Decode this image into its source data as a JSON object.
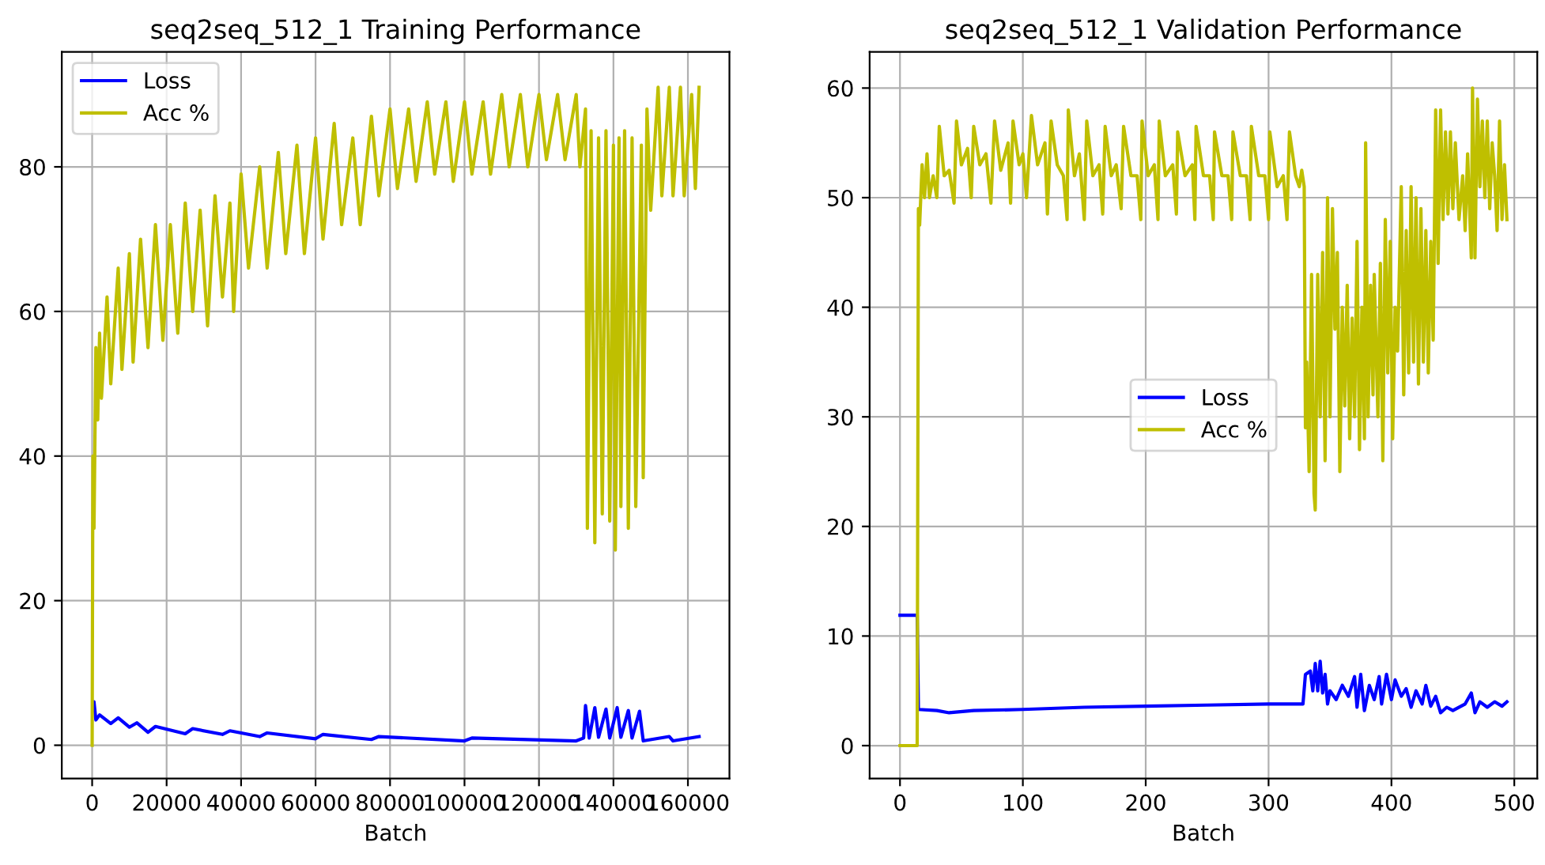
{
  "chart_data": [
    {
      "type": "line",
      "title": "seq2seq_512_1 Training Performance",
      "xlabel": "Batch",
      "xlim": [
        -8150,
        171150
      ],
      "ylim": [
        -4.6,
        95.9
      ],
      "xticks": [
        0,
        20000,
        40000,
        60000,
        80000,
        100000,
        120000,
        140000,
        160000
      ],
      "yticks": [
        0,
        20,
        40,
        60,
        80
      ],
      "grid": true,
      "legend": "top left",
      "series": [
        {
          "name": "Loss",
          "color": "#0000ff",
          "x": [
            300,
            500,
            1000,
            2000,
            5000,
            7000,
            10000,
            12000,
            15000,
            17000,
            25000,
            27000,
            35000,
            37000,
            45000,
            47000,
            60000,
            62000,
            75000,
            77000,
            100000,
            102000,
            130000,
            132000,
            132500,
            133500,
            135000,
            136000,
            138000,
            139000,
            141000,
            142000,
            144000,
            145000,
            147000,
            148000,
            155000,
            156000,
            163000
          ],
          "values": [
            5,
            6,
            3.5,
            4.2,
            3,
            3.8,
            2.5,
            3.1,
            1.8,
            2.6,
            1.6,
            2.3,
            1.5,
            2.0,
            1.2,
            1.7,
            0.9,
            1.5,
            0.8,
            1.2,
            0.6,
            1.0,
            0.6,
            1.0,
            5.5,
            1,
            5.2,
            1.1,
            5.0,
            1,
            5.2,
            1.1,
            4.8,
            1,
            4.7,
            0.6,
            1.2,
            0.6,
            1.2
          ]
        },
        {
          "name": "Acc %",
          "color": "#bfbf00",
          "x": [
            0,
            200,
            500,
            1000,
            1500,
            2000,
            2500,
            4000,
            5000,
            7000,
            8000,
            10000,
            11000,
            13000,
            15000,
            17000,
            19000,
            21000,
            23000,
            25000,
            27000,
            29000,
            31000,
            33000,
            35000,
            37000,
            38000,
            40000,
            42000,
            45000,
            47000,
            50000,
            52000,
            55000,
            57000,
            60000,
            62000,
            65000,
            67000,
            70000,
            72000,
            75000,
            77000,
            80000,
            82000,
            85000,
            87000,
            90000,
            92000,
            95000,
            97000,
            100000,
            102000,
            105000,
            107000,
            110000,
            112000,
            115000,
            117000,
            120000,
            122000,
            125000,
            127000,
            130000,
            131000,
            132500,
            133000,
            134000,
            135000,
            136000,
            137000,
            138000,
            139000,
            140000,
            140500,
            141500,
            142000,
            143000,
            144000,
            145000,
            146000,
            147500,
            148000,
            149000,
            150000,
            152000,
            153000,
            155000,
            156000,
            158000,
            159000,
            161000,
            162000,
            163000
          ],
          "values": [
            0,
            40,
            30,
            55,
            45,
            57,
            48,
            62,
            50,
            66,
            52,
            68,
            53,
            70,
            55,
            72,
            56,
            72,
            57,
            75,
            60,
            74,
            58,
            76,
            62,
            75,
            60,
            79,
            66,
            80,
            66,
            82,
            68,
            83,
            68,
            84,
            70,
            86,
            72,
            84,
            72,
            87,
            76,
            88,
            77,
            88,
            78,
            89,
            79,
            89,
            78,
            89,
            79,
            89,
            79,
            90,
            80,
            90,
            80,
            90,
            81,
            90,
            81,
            90,
            80,
            88,
            30,
            85,
            28,
            84,
            32,
            85,
            31,
            83,
            27,
            84,
            33,
            85,
            30,
            84,
            33,
            83,
            37,
            88,
            74,
            91,
            76,
            91,
            76,
            91,
            76,
            90,
            77,
            91
          ]
        }
      ]
    },
    {
      "type": "line",
      "title": "seq2seq_512_1 Validation Performance",
      "xlabel": "Batch",
      "xlim": [
        -24.7,
        518.7
      ],
      "ylim": [
        -3,
        63.3
      ],
      "xticks": [
        0,
        100,
        200,
        300,
        400,
        500
      ],
      "yticks": [
        0,
        10,
        20,
        30,
        40,
        50,
        60
      ],
      "grid": true,
      "legend": "center",
      "series": [
        {
          "name": "Loss",
          "color": "#0000ff",
          "x": [
            0,
            14,
            15,
            30,
            40,
            60,
            100,
            150,
            200,
            250,
            300,
            328,
            330,
            334,
            336,
            338,
            340,
            342,
            344,
            346,
            348,
            350,
            355,
            360,
            365,
            370,
            372,
            375,
            378,
            382,
            386,
            390,
            392,
            396,
            400,
            403,
            408,
            412,
            416,
            420,
            425,
            428,
            432,
            436,
            440,
            445,
            450,
            460,
            465,
            468,
            472,
            478,
            484,
            490,
            494
          ],
          "values": [
            11.9,
            11.9,
            3.3,
            3.2,
            3,
            3.2,
            3.3,
            3.5,
            3.6,
            3.7,
            3.8,
            3.8,
            6.5,
            6.8,
            5,
            7.5,
            5,
            7.7,
            4.8,
            6.5,
            3.8,
            5,
            4.2,
            5.5,
            4.5,
            6.3,
            3.5,
            6.5,
            3.2,
            5.5,
            4.2,
            6.3,
            3.8,
            6.5,
            4.2,
            6,
            4.5,
            5.2,
            3.5,
            5,
            3.8,
            5.5,
            3.6,
            4.5,
            3,
            3.5,
            3.2,
            3.8,
            4.8,
            3,
            4,
            3.5,
            4,
            3.6,
            4
          ]
        },
        {
          "name": "Acc %",
          "color": "#bfbf00",
          "x": [
            0,
            14,
            15,
            16,
            18,
            20,
            22,
            24,
            27,
            30,
            32,
            36,
            40,
            44,
            46,
            50,
            55,
            58,
            60,
            65,
            70,
            74,
            77,
            82,
            88,
            90,
            92,
            97,
            100,
            103,
            107,
            112,
            118,
            120,
            123,
            128,
            133,
            136,
            137,
            142,
            146,
            150,
            152,
            157,
            162,
            165,
            167,
            172,
            176,
            180,
            182,
            188,
            193,
            196,
            197,
            202,
            207,
            210,
            211,
            216,
            222,
            225,
            226,
            232,
            238,
            240,
            241,
            247,
            252,
            255,
            256,
            262,
            267,
            270,
            271,
            277,
            282,
            285,
            286,
            292,
            297,
            300,
            301,
            307,
            312,
            315,
            317,
            322,
            325,
            327,
            329,
            330,
            331,
            333,
            335,
            337,
            338,
            340,
            342,
            344,
            346,
            348,
            350,
            352,
            354,
            356,
            358,
            360,
            362,
            364,
            366,
            368,
            370,
            372,
            374,
            376,
            378,
            379,
            381,
            383,
            385,
            386,
            389,
            391,
            393,
            395,
            397,
            399,
            401,
            403,
            405,
            408,
            410,
            412,
            414,
            416,
            418,
            420,
            422,
            424,
            426,
            428,
            430,
            432,
            434,
            436,
            438,
            440,
            442,
            444,
            446,
            448,
            450,
            452,
            455,
            458,
            460,
            462,
            465,
            466,
            468,
            470,
            472,
            474,
            476,
            478,
            480,
            482,
            484,
            486,
            488,
            490,
            492,
            494
          ],
          "values": [
            0,
            0,
            49,
            47.5,
            53,
            50,
            54,
            50,
            52,
            50,
            56.5,
            52,
            52.5,
            49.5,
            57,
            53,
            54.5,
            50,
            56.5,
            53,
            54,
            49.5,
            57,
            52.5,
            55,
            49.5,
            57,
            53,
            54,
            50,
            57.5,
            53,
            55,
            48.5,
            57,
            53,
            52,
            48,
            58,
            52,
            54,
            48,
            57,
            52,
            53,
            48.5,
            56.5,
            52,
            53,
            49,
            56.5,
            52,
            52,
            48,
            57,
            52,
            53,
            48,
            57,
            52,
            53,
            48.5,
            56,
            52,
            53,
            48,
            56.5,
            52,
            52,
            48,
            56,
            52,
            52,
            48,
            56,
            52,
            52,
            48,
            56.5,
            52,
            52,
            48,
            56,
            51,
            52,
            48,
            56,
            52,
            51,
            52.5,
            51,
            29,
            35,
            25,
            43,
            23,
            21.5,
            43,
            30,
            45,
            26,
            50,
            30,
            49,
            38,
            45,
            25,
            40,
            31,
            42,
            28,
            39,
            30,
            46,
            27,
            40,
            28,
            55,
            30,
            42,
            32,
            43,
            30,
            44,
            26,
            48,
            34,
            46,
            28,
            40,
            36,
            51,
            32,
            47,
            34,
            51,
            35,
            50,
            33,
            49,
            35,
            47,
            34,
            46,
            37,
            58,
            44,
            58,
            48,
            56,
            48.5,
            56,
            49,
            55,
            48,
            52,
            47,
            54,
            44.5,
            60,
            44.5,
            59,
            51,
            57,
            50,
            57,
            49,
            55,
            52,
            47,
            57,
            48,
            53,
            48
          ]
        }
      ]
    }
  ]
}
